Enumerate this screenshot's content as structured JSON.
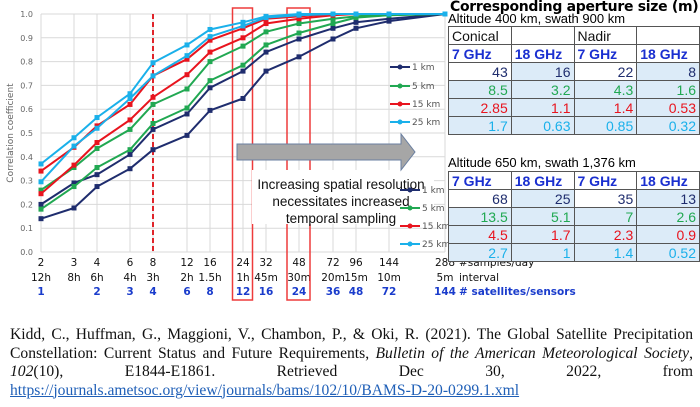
{
  "chart_data": {
    "type": "line",
    "title": "",
    "xlabel": "",
    "ylabel": "Correlation coefficient",
    "ylim": [
      0.0,
      1.0
    ],
    "yticks": [
      "0.0",
      "0.1",
      "0.2",
      "0.3",
      "0.4",
      "0.5",
      "0.6",
      "0.7",
      "0.8",
      "0.9",
      "1.0"
    ],
    "grid": true,
    "x": [
      2,
      3,
      4,
      6,
      8,
      12,
      16,
      24,
      32,
      48,
      72,
      96,
      144,
      288
    ],
    "x_tick_labels": {
      "samples_per_day": [
        "2",
        "3",
        "4",
        "6",
        "8",
        "12",
        "16",
        "24",
        "32",
        "48",
        "72",
        "96",
        "144",
        "288"
      ],
      "interval": [
        "12h",
        "8h",
        "6h",
        "4h",
        "3h",
        "2h",
        "1.5h",
        "1h",
        "45m",
        "30m",
        "20m",
        "15m",
        "10m",
        "5m"
      ],
      "satellites": [
        "1",
        "",
        "2",
        "3",
        "4",
        "6",
        "8",
        "12",
        "16",
        "24",
        "36",
        "48",
        "72",
        "144"
      ]
    },
    "x_row_captions": {
      "samples_per_day": "#samples/day",
      "interval": "interval",
      "satellites": "# satellites/sensors"
    },
    "series": [
      {
        "name": "1 km",
        "color": "#1f2d6e",
        "curve": "upper",
        "values": [
          0.2,
          0.29,
          0.325,
          0.41,
          0.515,
          0.58,
          0.69,
          0.76,
          0.84,
          0.895,
          0.94,
          0.965,
          0.98,
          1.0
        ]
      },
      {
        "name": "1 km",
        "color": "#1f2d6e",
        "curve": "lower",
        "values": [
          0.14,
          0.185,
          0.275,
          0.35,
          0.43,
          0.49,
          0.595,
          0.645,
          0.76,
          0.82,
          0.895,
          0.94,
          0.97,
          1.0
        ]
      },
      {
        "name": "5 km",
        "color": "#21a852",
        "curve": "upper",
        "values": [
          0.26,
          0.355,
          0.435,
          0.515,
          0.62,
          0.685,
          0.8,
          0.865,
          0.925,
          0.96,
          0.98,
          0.99,
          1.0,
          1.0
        ]
      },
      {
        "name": "5 km",
        "color": "#21a852",
        "curve": "lower",
        "values": [
          0.18,
          0.275,
          0.355,
          0.43,
          0.54,
          0.605,
          0.72,
          0.785,
          0.87,
          0.92,
          0.96,
          0.985,
          0.995,
          1.0
        ]
      },
      {
        "name": "15 km",
        "color": "#e8141e",
        "curve": "upper",
        "values": [
          0.34,
          0.44,
          0.53,
          0.62,
          0.74,
          0.81,
          0.89,
          0.94,
          0.98,
          0.99,
          1.0,
          1.0,
          1.0,
          1.0
        ]
      },
      {
        "name": "15 km",
        "color": "#e8141e",
        "curve": "lower",
        "values": [
          0.245,
          0.365,
          0.46,
          0.555,
          0.65,
          0.745,
          0.84,
          0.9,
          0.96,
          0.98,
          0.995,
          1.0,
          1.0,
          1.0
        ]
      },
      {
        "name": "25 km",
        "color": "#1ab0ea",
        "curve": "upper",
        "values": [
          0.37,
          0.48,
          0.565,
          0.665,
          0.795,
          0.87,
          0.935,
          0.965,
          0.99,
          1.0,
          1.0,
          1.0,
          1.0,
          1.0
        ]
      },
      {
        "name": "25 km",
        "color": "#1ab0ea",
        "curve": "lower",
        "values": [
          0.295,
          0.445,
          0.52,
          0.645,
          0.74,
          0.825,
          0.905,
          0.95,
          0.985,
          0.995,
          1.0,
          1.0,
          1.0,
          1.0
        ]
      }
    ],
    "legend": {
      "placement": "right",
      "entries": [
        {
          "label": "1 km",
          "color": "#1f2d6e"
        },
        {
          "label": "5 km",
          "color": "#21a852"
        },
        {
          "label": "15 km",
          "color": "#e8141e"
        },
        {
          "label": "25 km",
          "color": "#1ab0ea"
        }
      ]
    },
    "annotations": {
      "dashed_vertical_line_at_x": 8,
      "highlight_boxes_at_x": [
        24,
        48
      ],
      "arrow_text": [
        "Increasing spatial resolution",
        "necessitates increased",
        "temporal sampling"
      ]
    }
  },
  "aperture": {
    "title": "Corresponding aperture size (m)",
    "table1": {
      "subtitle": "Altitude 400 km, swath 900 km",
      "group_headers": [
        "Conical",
        "",
        "Nadir",
        ""
      ],
      "freq_headers": [
        "7 GHz",
        "18 GHz",
        "7 GHz",
        "18 GHz"
      ],
      "rows": [
        {
          "resolution": "1 km",
          "color": "#1f2d6e",
          "values": [
            "43",
            "16",
            "22",
            "8"
          ]
        },
        {
          "resolution": "5 km",
          "color": "#21a852",
          "values": [
            "8.5",
            "3.2",
            "4.3",
            "1.6"
          ]
        },
        {
          "resolution": "15 km",
          "color": "#e8141e",
          "values": [
            "2.85",
            "1.1",
            "1.4",
            "0.53"
          ]
        },
        {
          "resolution": "25 km",
          "color": "#1ab0ea",
          "values": [
            "1.7",
            "0.63",
            "0.85",
            "0.32"
          ]
        }
      ]
    },
    "table2": {
      "subtitle": "Altitude 650 km, swath 1,376 km",
      "freq_headers": [
        "7 GHz",
        "18 GHz",
        "7 GHz",
        "18 GHz"
      ],
      "rows": [
        {
          "resolution": "1 km",
          "color": "#1f2d6e",
          "values": [
            "68",
            "25",
            "35",
            "13"
          ]
        },
        {
          "resolution": "5 km",
          "color": "#21a852",
          "values": [
            "13.5",
            "5.1",
            "7",
            "2.6"
          ]
        },
        {
          "resolution": "15 km",
          "color": "#e8141e",
          "values": [
            "4.5",
            "1.7",
            "2.3",
            "0.9"
          ]
        },
        {
          "resolution": "25 km",
          "color": "#1ab0ea",
          "values": [
            "2.7",
            "1",
            "1.4",
            "0.52"
          ]
        }
      ]
    }
  },
  "citation": {
    "part1": "Kidd, C., Huffman, G., Maggioni, V., Chambon, P., & Oki, R. (2021). The Global Satellite Precipitation Constellation: Current Status and Future Requirements, ",
    "journal": "Bulletin of the American Meteorological Society",
    "sep1": ", ",
    "volume": "102",
    "part2": "(10), E1844-E1861. Retrieved Dec 30, 2022, from ",
    "url": "https://journals.ametsoc.org/view/journals/bams/102/10/BAMS-D-20-0299.1.xml"
  }
}
